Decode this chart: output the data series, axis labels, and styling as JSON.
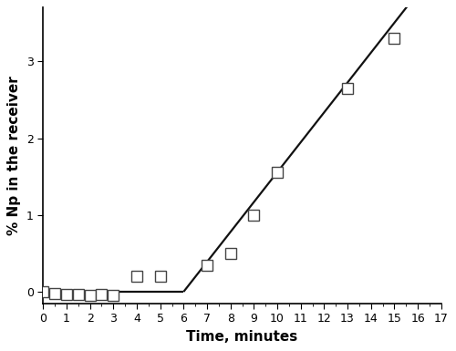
{
  "x_data": [
    0,
    0.5,
    1,
    1.5,
    2,
    2.5,
    3,
    4,
    5,
    7,
    8,
    9,
    10,
    13,
    15
  ],
  "y_data": [
    0.0,
    -0.02,
    -0.03,
    -0.04,
    -0.05,
    -0.04,
    -0.05,
    0.2,
    0.2,
    0.35,
    0.5,
    1.0,
    1.55,
    2.65,
    3.3
  ],
  "line_slope": 0.389,
  "line_intercept": -2.333,
  "line_x_break": 6.0,
  "line_x_end": 17.0,
  "xlabel": "Time, minutes",
  "ylabel": "% Np in the receiver",
  "xlim": [
    0,
    17
  ],
  "ylim": [
    -0.15,
    3.7
  ],
  "xticks": [
    0,
    1,
    2,
    3,
    4,
    5,
    6,
    7,
    8,
    9,
    10,
    11,
    12,
    13,
    14,
    15,
    16,
    17
  ],
  "yticks": [
    0,
    1,
    2,
    3
  ],
  "marker_facecolor": "#ffffff",
  "marker_edgecolor": "#444444",
  "line_color": "#111111",
  "background_color": "#ffffff",
  "marker_size": 8,
  "marker_linewidth": 1.0,
  "line_linewidth": 1.6,
  "xlabel_fontsize": 11,
  "ylabel_fontsize": 11,
  "tick_labelsize": 9
}
